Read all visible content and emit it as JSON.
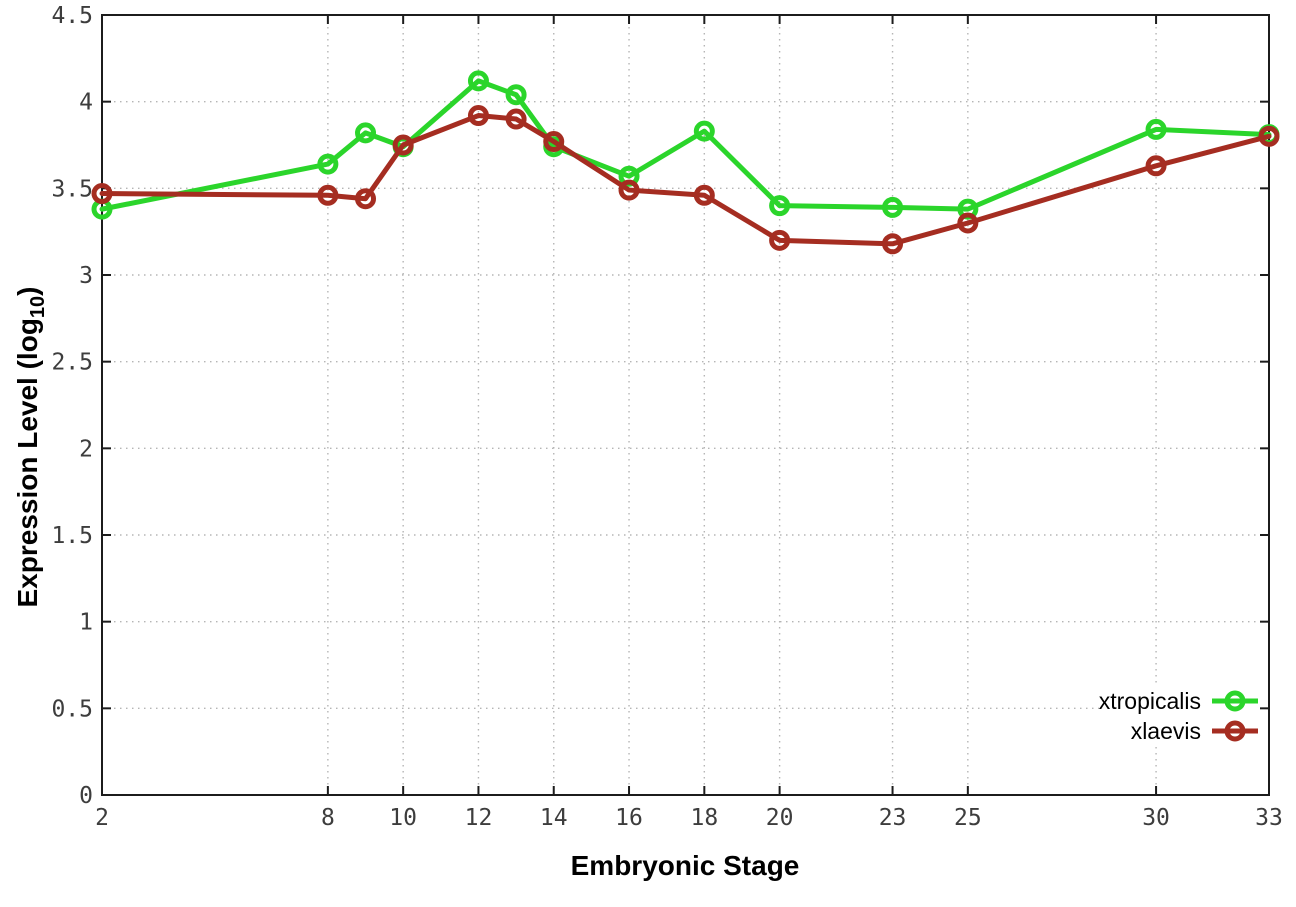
{
  "chart_data": {
    "type": "line",
    "title": "",
    "xlabel": "Embryonic Stage",
    "ylabel_prefix": "Expression Level (log",
    "ylabel_subscript": "10",
    "ylabel_suffix": ")",
    "xlim": [
      2,
      33
    ],
    "ylim": [
      0,
      4.5
    ],
    "grid": true,
    "legend_position": "bottom-right",
    "x_ticks": [
      2,
      8,
      10,
      12,
      14,
      16,
      18,
      20,
      23,
      25,
      30,
      33
    ],
    "x_tick_labels": [
      "2",
      "8",
      "10",
      "12",
      "14",
      "16",
      "18",
      "20",
      "23",
      "25",
      "30",
      "33"
    ],
    "y_ticks": [
      0,
      0.5,
      1,
      1.5,
      2,
      2.5,
      3,
      3.5,
      4,
      4.5
    ],
    "y_tick_labels": [
      "0",
      "0.5",
      "1",
      "1.5",
      "2",
      "2.5",
      "3",
      "3.5",
      "4",
      "4.5"
    ],
    "x": [
      2,
      8,
      9,
      10,
      12,
      13,
      14,
      16,
      18,
      20,
      23,
      25,
      30,
      33
    ],
    "series": [
      {
        "name": "xtropicalis",
        "color": "#2bd52b",
        "values": [
          3.38,
          3.64,
          3.82,
          3.74,
          4.12,
          4.04,
          3.74,
          3.57,
          3.83,
          3.4,
          3.39,
          3.38,
          3.84,
          3.81
        ]
      },
      {
        "name": "xlaevis",
        "color": "#a52d21",
        "values": [
          3.47,
          3.46,
          3.44,
          3.75,
          3.92,
          3.9,
          3.77,
          3.49,
          3.46,
          3.2,
          3.18,
          3.3,
          3.63,
          3.8
        ]
      }
    ],
    "colors": {
      "grid": "#b5b5b5",
      "axis": "#1c1c1c",
      "tick_label": "#3d3d3d",
      "background": "#ffffff"
    }
  }
}
